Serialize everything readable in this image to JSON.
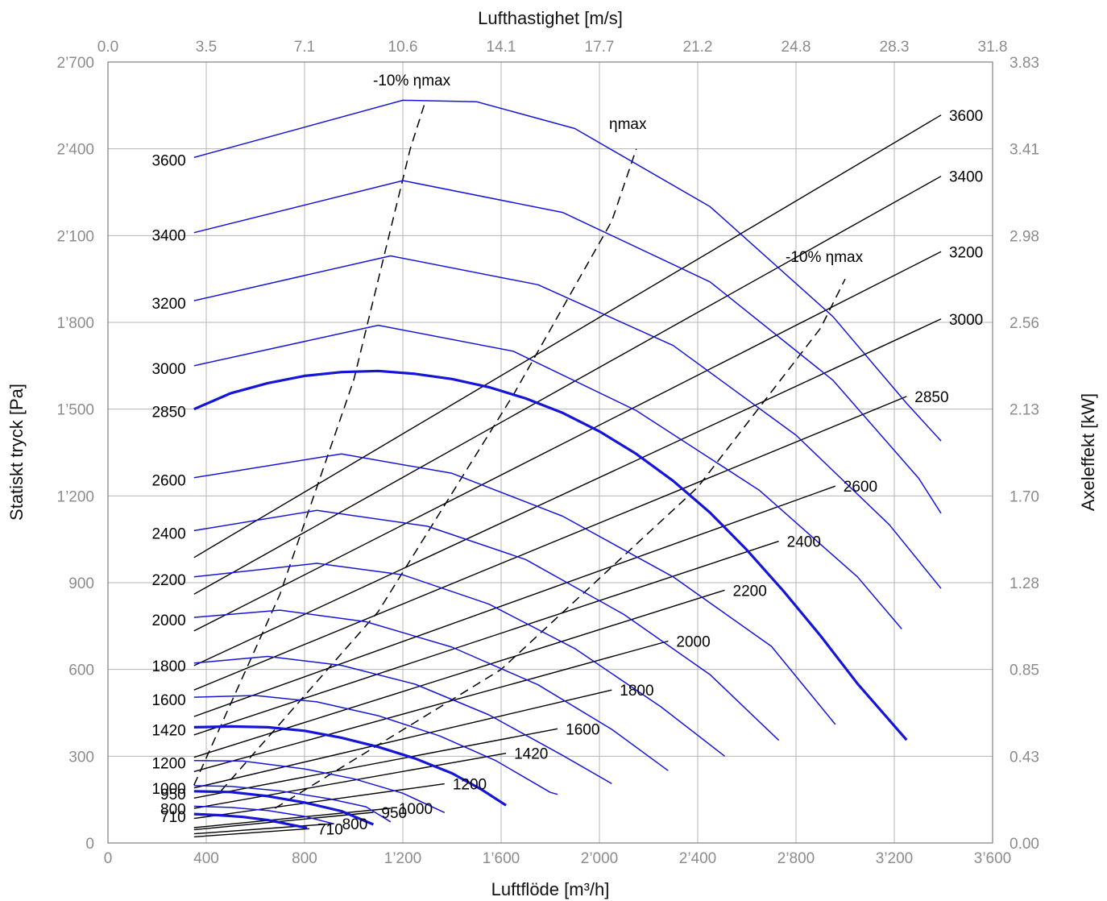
{
  "chart_data": {
    "type": "line",
    "xlabel": "Luftflöde [m³/h]",
    "ylabel": "Statiskt tryck [Pa]",
    "x2label": "Lufthastighet [m/s]",
    "y2label": "Axeleffekt [kW]",
    "xlim": [
      0,
      3600
    ],
    "ylim": [
      0,
      2700
    ],
    "y2lim": [
      0,
      3.83
    ],
    "x_ticks": [
      "0",
      "400",
      "800",
      "1’200",
      "1’600",
      "2’000",
      "2’400",
      "2’800",
      "3’200",
      "3’600"
    ],
    "y_ticks": [
      "0",
      "300",
      "600",
      "900",
      "1’200",
      "1’500",
      "1’800",
      "2’100",
      "2’400",
      "2’700"
    ],
    "x2_ticks": [
      "0.0",
      "3.5",
      "7.1",
      "10.6",
      "14.1",
      "17.7",
      "21.2",
      "24.8",
      "28.3",
      "31.8"
    ],
    "y2_ticks": [
      "0.00",
      "0.43",
      "0.85",
      "1.28",
      "1.70",
      "2.13",
      "2.56",
      "2.98",
      "3.41",
      "3.83"
    ],
    "grid": true,
    "pressure_curves": [
      {
        "rpm": "710",
        "bold": true,
        "points": [
          [
            350,
            100
          ],
          [
            450,
            96
          ],
          [
            550,
            90
          ],
          [
            650,
            79
          ],
          [
            750,
            62
          ],
          [
            810,
            52
          ]
        ]
      },
      {
        "rpm": "800",
        "bold": false,
        "points": [
          [
            350,
            127
          ],
          [
            500,
            123
          ],
          [
            650,
            112
          ],
          [
            800,
            92
          ],
          [
            920,
            66
          ]
        ]
      },
      {
        "rpm": "950",
        "bold": true,
        "points": [
          [
            350,
            179
          ],
          [
            500,
            176
          ],
          [
            650,
            162
          ],
          [
            800,
            140
          ],
          [
            950,
            110
          ],
          [
            1080,
            64
          ]
        ]
      },
      {
        "rpm": "1000",
        "bold": false,
        "points": [
          [
            350,
            198
          ],
          [
            500,
            196
          ],
          [
            700,
            180
          ],
          [
            900,
            153
          ],
          [
            1050,
            125
          ],
          [
            1150,
            73
          ]
        ]
      },
      {
        "rpm": "1200",
        "bold": false,
        "points": [
          [
            350,
            285
          ],
          [
            550,
            283
          ],
          [
            800,
            256
          ],
          [
            1000,
            222
          ],
          [
            1200,
            172
          ],
          [
            1370,
            105
          ]
        ]
      },
      {
        "rpm": "1420",
        "bold": true,
        "points": [
          [
            350,
            400
          ],
          [
            500,
            403
          ],
          [
            650,
            400
          ],
          [
            800,
            388
          ],
          [
            950,
            364
          ],
          [
            1100,
            332
          ],
          [
            1250,
            292
          ],
          [
            1400,
            241
          ],
          [
            1520,
            185
          ],
          [
            1620,
            130
          ]
        ]
      },
      {
        "rpm": "1600",
        "bold": false,
        "points": [
          [
            350,
            504
          ],
          [
            600,
            510
          ],
          [
            850,
            488
          ],
          [
            1100,
            440
          ],
          [
            1350,
            370
          ],
          [
            1580,
            284
          ],
          [
            1800,
            175
          ],
          [
            1830,
            168
          ]
        ]
      },
      {
        "rpm": "1800",
        "bold": false,
        "points": [
          [
            350,
            622
          ],
          [
            650,
            645
          ],
          [
            950,
            614
          ],
          [
            1250,
            549
          ],
          [
            1550,
            443
          ],
          [
            1850,
            303
          ],
          [
            2050,
            205
          ]
        ]
      },
      {
        "rpm": "2000",
        "bold": false,
        "points": [
          [
            350,
            780
          ],
          [
            700,
            805
          ],
          [
            1050,
            765
          ],
          [
            1400,
            677
          ],
          [
            1750,
            547
          ],
          [
            2050,
            393
          ],
          [
            2280,
            250
          ]
        ]
      },
      {
        "rpm": "2200",
        "bold": false,
        "points": [
          [
            350,
            920
          ],
          [
            850,
            967
          ],
          [
            1200,
            927
          ],
          [
            1550,
            826
          ],
          [
            1900,
            672
          ],
          [
            2250,
            471
          ],
          [
            2510,
            300
          ]
        ]
      },
      {
        "rpm": "2400",
        "bold": false,
        "points": [
          [
            350,
            1080
          ],
          [
            850,
            1150
          ],
          [
            1300,
            1095
          ],
          [
            1700,
            980
          ],
          [
            2100,
            790
          ],
          [
            2450,
            582
          ],
          [
            2730,
            355
          ]
        ]
      },
      {
        "rpm": "2600",
        "bold": false,
        "points": [
          [
            350,
            1263
          ],
          [
            950,
            1345
          ],
          [
            1400,
            1278
          ],
          [
            1850,
            1130
          ],
          [
            2300,
            920
          ],
          [
            2700,
            680
          ],
          [
            2960,
            410
          ]
        ]
      },
      {
        "rpm": "2850",
        "bold": true,
        "points": [
          [
            350,
            1500
          ],
          [
            500,
            1555
          ],
          [
            650,
            1590
          ],
          [
            800,
            1615
          ],
          [
            950,
            1628
          ],
          [
            1100,
            1632
          ],
          [
            1250,
            1622
          ],
          [
            1400,
            1604
          ],
          [
            1550,
            1576
          ],
          [
            1700,
            1537
          ],
          [
            1850,
            1487
          ],
          [
            2000,
            1423
          ],
          [
            2150,
            1345
          ],
          [
            2300,
            1252
          ],
          [
            2450,
            1142
          ],
          [
            2600,
            1013
          ],
          [
            2750,
            870
          ],
          [
            2900,
            716
          ],
          [
            3050,
            551
          ],
          [
            3250,
            356
          ]
        ]
      },
      {
        "rpm": "3000",
        "bold": false,
        "points": [
          [
            350,
            1650
          ],
          [
            1100,
            1790
          ],
          [
            1650,
            1700
          ],
          [
            2150,
            1495
          ],
          [
            2650,
            1220
          ],
          [
            3050,
            920
          ],
          [
            3230,
            740
          ]
        ]
      },
      {
        "rpm": "3200",
        "bold": false,
        "points": [
          [
            350,
            1875
          ],
          [
            1150,
            2030
          ],
          [
            1750,
            1930
          ],
          [
            2300,
            1720
          ],
          [
            2800,
            1410
          ],
          [
            3180,
            1100
          ],
          [
            3390,
            880
          ]
        ]
      },
      {
        "rpm": "3400",
        "bold": false,
        "points": [
          [
            350,
            2110
          ],
          [
            1200,
            2290
          ],
          [
            1850,
            2180
          ],
          [
            2450,
            1940
          ],
          [
            2950,
            1600
          ],
          [
            3300,
            1260
          ],
          [
            3390,
            1140
          ]
        ]
      },
      {
        "rpm": "3600",
        "bold": false,
        "points": [
          [
            350,
            2370
          ],
          [
            1200,
            2568
          ],
          [
            1500,
            2563
          ],
          [
            1900,
            2470
          ],
          [
            2450,
            2200
          ],
          [
            2950,
            1820
          ],
          [
            3250,
            1520
          ],
          [
            3390,
            1390
          ]
        ]
      }
    ],
    "power_lines": [
      {
        "rpm": "710",
        "points": [
          [
            350,
            0.03
          ],
          [
            820,
            0.07
          ]
        ]
      },
      {
        "rpm": "800",
        "points": [
          [
            350,
            0.045
          ],
          [
            920,
            0.095
          ]
        ]
      },
      {
        "rpm": "950",
        "points": [
          [
            350,
            0.065
          ],
          [
            1080,
            0.15
          ]
        ]
      },
      {
        "rpm": "1000",
        "points": [
          [
            350,
            0.075
          ],
          [
            1150,
            0.17
          ]
        ]
      },
      {
        "rpm": "1200",
        "points": [
          [
            350,
            0.12
          ],
          [
            1370,
            0.29
          ]
        ]
      },
      {
        "rpm": "1420",
        "points": [
          [
            350,
            0.17
          ],
          [
            1620,
            0.44
          ]
        ]
      },
      {
        "rpm": "1600",
        "points": [
          [
            350,
            0.22
          ],
          [
            1830,
            0.56
          ]
        ]
      },
      {
        "rpm": "1800",
        "points": [
          [
            350,
            0.27
          ],
          [
            2050,
            0.75
          ]
        ]
      },
      {
        "rpm": "2000",
        "points": [
          [
            350,
            0.35
          ],
          [
            2280,
            0.99
          ]
        ]
      },
      {
        "rpm": "2200",
        "points": [
          [
            350,
            0.42
          ],
          [
            2510,
            1.24
          ]
        ]
      },
      {
        "rpm": "2400",
        "points": [
          [
            350,
            0.53
          ],
          [
            2730,
            1.48
          ]
        ]
      },
      {
        "rpm": "2600",
        "points": [
          [
            350,
            0.62
          ],
          [
            2960,
            1.75
          ]
        ]
      },
      {
        "rpm": "2850",
        "points": [
          [
            350,
            0.75
          ],
          [
            3250,
            2.19
          ]
        ]
      },
      {
        "rpm": "3000",
        "points": [
          [
            350,
            0.87
          ],
          [
            3390,
            2.57
          ]
        ]
      },
      {
        "rpm": "3200",
        "points": [
          [
            350,
            1.04
          ],
          [
            3390,
            2.9
          ]
        ]
      },
      {
        "rpm": "3400",
        "points": [
          [
            350,
            1.22
          ],
          [
            3390,
            3.27
          ]
        ]
      },
      {
        "rpm": "3600",
        "points": [
          [
            350,
            1.4
          ],
          [
            3390,
            3.57
          ]
        ]
      }
    ],
    "efficiency_lines": [
      {
        "label": "-10% ηmax",
        "points": [
          [
            350,
            200
          ],
          [
            700,
            860
          ],
          [
            1000,
            1600
          ],
          [
            1230,
            2400
          ],
          [
            1290,
            2560
          ]
        ]
      },
      {
        "label": "ηmax",
        "points": [
          [
            460,
            180
          ],
          [
            1100,
            800
          ],
          [
            1650,
            1550
          ],
          [
            2050,
            2150
          ],
          [
            2150,
            2400
          ]
        ]
      },
      {
        "label": "-10% ηmax",
        "points": [
          [
            680,
            120
          ],
          [
            1600,
            600
          ],
          [
            2400,
            1230
          ],
          [
            2900,
            1780
          ],
          [
            3000,
            1950
          ]
        ]
      }
    ],
    "annotations": [
      "-10% ηmax",
      "ηmax",
      "-10% ηmax"
    ]
  }
}
